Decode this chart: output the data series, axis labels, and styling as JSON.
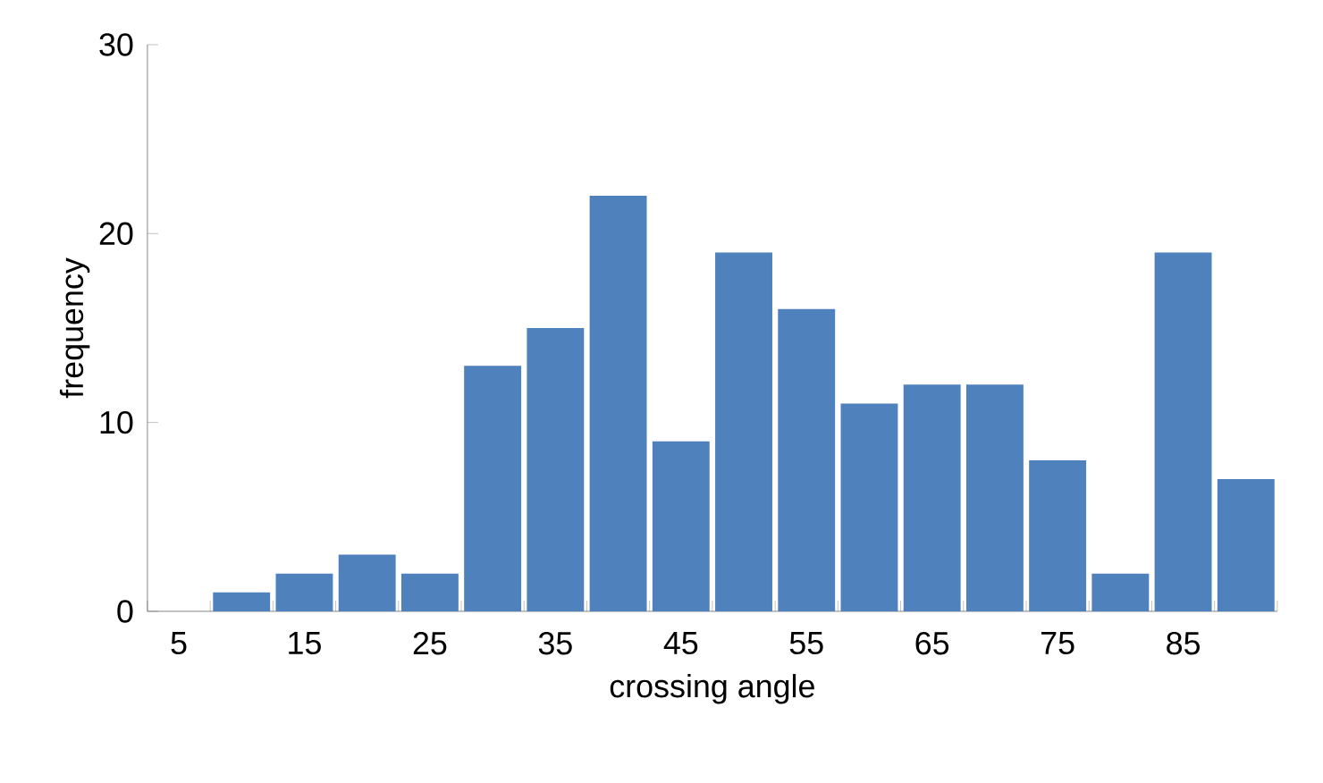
{
  "chart_data": {
    "type": "bar",
    "xlabel": "crossing angle",
    "ylabel": "frequency",
    "categories": [
      "5",
      null,
      "15",
      null,
      "25",
      null,
      "35",
      null,
      "45",
      null,
      "55",
      null,
      "65",
      null,
      "75",
      null,
      "85",
      null
    ],
    "values": [
      0,
      1,
      2,
      3,
      2,
      13,
      15,
      22,
      9,
      19,
      16,
      11,
      12,
      12,
      8,
      2,
      19,
      7
    ],
    "color": "#4f81bd",
    "ylim": [
      0,
      30
    ],
    "yticks": [
      0,
      10,
      20,
      30
    ]
  }
}
